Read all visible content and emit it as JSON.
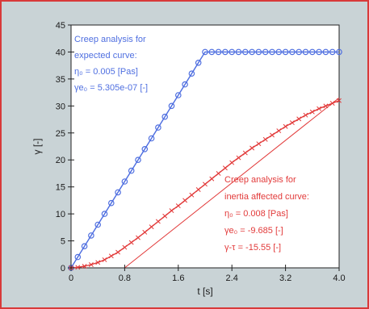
{
  "chart_data": {
    "type": "line",
    "xlabel": "t [s]",
    "ylabel": "γ [-]",
    "xlim": [
      0,
      4.0
    ],
    "ylim": [
      0,
      45
    ],
    "xticks": [
      "0",
      "0.8",
      "1.6",
      "2.4",
      "3.2",
      "4.0"
    ],
    "xtick_values": [
      0,
      0.8,
      1.6,
      2.4,
      3.2,
      4.0
    ],
    "yticks": [
      "0",
      "5",
      "10",
      "15",
      "20",
      "25",
      "30",
      "35",
      "40",
      "45"
    ],
    "ytick_values": [
      0,
      5,
      10,
      15,
      20,
      25,
      30,
      35,
      40,
      45
    ],
    "grid": false,
    "colors": {
      "blue": "#4f6fe0",
      "red": "#e23a3a",
      "frame": "#d83a3a",
      "background": "#c9d3d6",
      "plot": "#ffffff"
    },
    "series": [
      {
        "color": "#4f6fe0",
        "marker": "circle",
        "x": [
          0,
          0.1,
          0.2,
          0.3,
          0.4,
          0.5,
          0.6,
          0.7,
          0.8,
          0.9,
          1.0,
          1.1,
          1.2,
          1.3,
          1.4,
          1.5,
          1.6,
          1.7,
          1.8,
          1.9,
          2.0,
          2.1,
          2.2,
          2.3,
          2.4,
          2.5,
          2.6,
          2.7,
          2.8,
          2.9,
          3.0,
          3.1,
          3.2,
          3.3,
          3.4,
          3.5,
          3.6,
          3.7,
          3.8,
          3.9,
          4.0
        ],
        "y": [
          0,
          2,
          4,
          6,
          8,
          10,
          12,
          14,
          16,
          18,
          20,
          22,
          24,
          26,
          28,
          30,
          32,
          34,
          36,
          38,
          40,
          40,
          40,
          40,
          40,
          40,
          40,
          40,
          40,
          40,
          40,
          40,
          40,
          40,
          40,
          40,
          40,
          40,
          40,
          40,
          40
        ]
      },
      {
        "color": "#4f6fe0",
        "marker": "none",
        "x": [
          0,
          1.92
        ],
        "y": [
          0,
          38.4
        ]
      },
      {
        "color": "#e23a3a",
        "marker": "x",
        "x": [
          0,
          0.1,
          0.2,
          0.3,
          0.4,
          0.5,
          0.6,
          0.7,
          0.8,
          0.9,
          1.0,
          1.1,
          1.2,
          1.3,
          1.4,
          1.5,
          1.6,
          1.7,
          1.8,
          1.9,
          2.0,
          2.1,
          2.2,
          2.3,
          2.4,
          2.5,
          2.6,
          2.7,
          2.8,
          2.9,
          3.0,
          3.1,
          3.2,
          3.3,
          3.4,
          3.5,
          3.6,
          3.7,
          3.8,
          3.9,
          4.0
        ],
        "y": [
          0,
          0.1,
          0.3,
          0.6,
          1.0,
          1.5,
          2.2,
          2.9,
          3.8,
          4.7,
          5.6,
          6.6,
          7.6,
          8.6,
          9.6,
          10.6,
          11.5,
          12.5,
          13.5,
          14.5,
          15.5,
          16.5,
          17.5,
          18.5,
          19.5,
          20.4,
          21.3,
          22.2,
          23.0,
          23.8,
          24.6,
          25.4,
          26.2,
          26.9,
          27.6,
          28.3,
          28.9,
          29.5,
          30.0,
          30.5,
          31.0
        ]
      },
      {
        "color": "#e23a3a",
        "marker": "none",
        "x": [
          0.8,
          4.0
        ],
        "y": [
          0,
          31.5
        ]
      }
    ],
    "annotations": {
      "blue": [
        "Creep analysis for",
        "expected curve:",
        "η₀ = 0.005 [Pas]",
        "γe₀ = 5.305e-07 [-]"
      ],
      "red": [
        "Creep analysis for",
        "inertia affected curve:",
        "η₀ = 0.008 [Pas]",
        "γe₀ = -9.685 [-]",
        "γ-τ = -15.55 [-]"
      ]
    }
  }
}
